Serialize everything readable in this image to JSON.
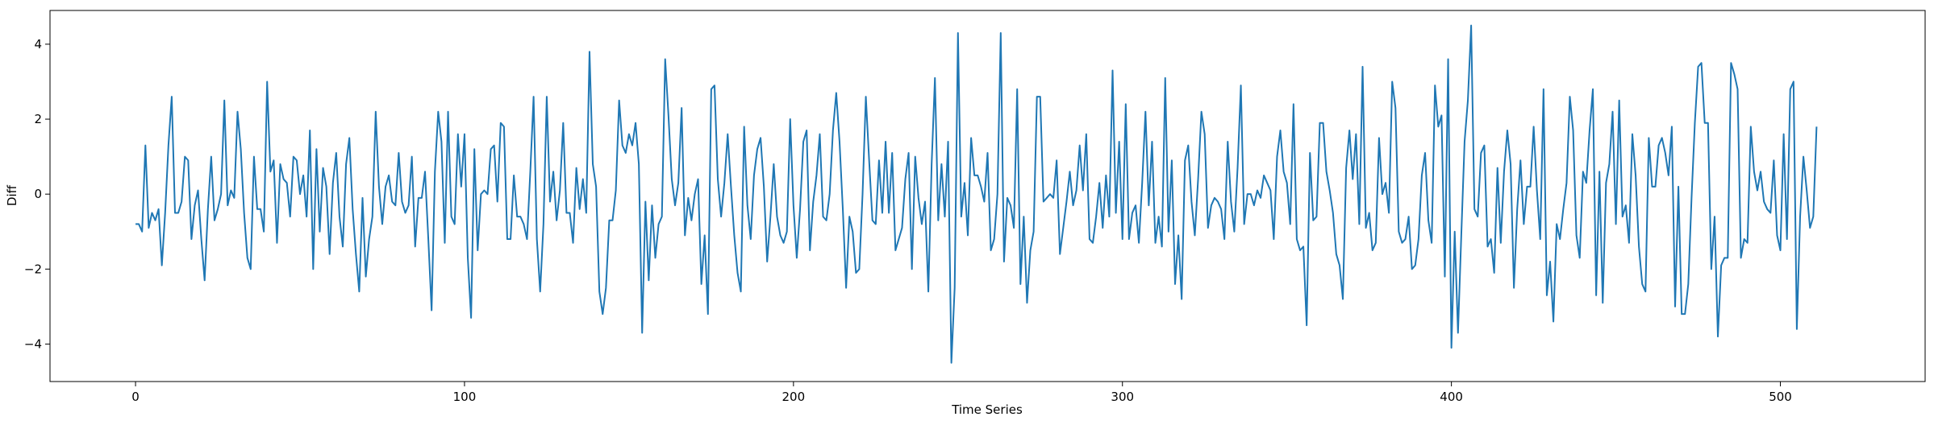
{
  "chart_data": {
    "type": "line",
    "title": "",
    "xlabel": "Time Series",
    "ylabel": "Diff",
    "xlim": [
      -26,
      544
    ],
    "ylim": [
      -5.0,
      4.9
    ],
    "xticks": [
      0,
      100,
      200,
      300,
      400,
      500
    ],
    "xtick_labels": [
      "0",
      "100",
      "200",
      "300",
      "400",
      "500"
    ],
    "yticks": [
      -4,
      -2,
      0,
      2,
      4
    ],
    "ytick_labels": [
      "−4",
      "−2",
      "0",
      "2",
      "4"
    ],
    "grid": false,
    "legend": "none",
    "series": [
      {
        "color": "#1f77b4",
        "x_start": 0,
        "x_step": 1,
        "values": [
          -0.8,
          -0.8,
          -1.0,
          1.3,
          -0.9,
          -0.5,
          -0.7,
          -0.4,
          -1.9,
          -0.5,
          1.3,
          2.6,
          -0.5,
          -0.5,
          -0.2,
          1.0,
          0.9,
          -1.2,
          -0.3,
          0.1,
          -1.2,
          -2.3,
          -0.4,
          1.0,
          -0.7,
          -0.4,
          0.0,
          2.5,
          -0.3,
          0.1,
          -0.1,
          2.2,
          1.2,
          -0.5,
          -1.7,
          -2.0,
          1.0,
          -0.4,
          -0.4,
          -1.0,
          3.0,
          0.6,
          0.9,
          -1.3,
          0.8,
          0.4,
          0.3,
          -0.6,
          1.0,
          0.9,
          0.0,
          0.5,
          -0.6,
          1.7,
          -2.0,
          1.2,
          -1.0,
          0.7,
          0.2,
          -1.6,
          0.3,
          1.1,
          -0.6,
          -1.4,
          0.8,
          1.5,
          -0.4,
          -1.6,
          -2.6,
          -0.1,
          -2.2,
          -1.2,
          -0.6,
          2.2,
          0.2,
          -0.8,
          0.2,
          0.5,
          -0.2,
          -0.3,
          1.1,
          -0.2,
          -0.5,
          -0.3,
          1.0,
          -1.4,
          -0.1,
          -0.1,
          0.6,
          -1.2,
          -3.1,
          0.6,
          2.2,
          1.4,
          -1.3,
          2.2,
          -0.6,
          -0.8,
          1.6,
          0.2,
          1.6,
          -1.7,
          -3.3,
          1.2,
          -1.5,
          0.0,
          0.1,
          0.0,
          1.2,
          1.3,
          -0.2,
          1.9,
          1.8,
          -1.2,
          -1.2,
          0.5,
          -0.6,
          -0.6,
          -0.8,
          -1.2,
          0.6,
          2.6,
          -1.2,
          -2.6,
          -0.8,
          2.6,
          -0.2,
          0.6,
          -0.7,
          0.1,
          1.9,
          -0.5,
          -0.5,
          -1.3,
          0.7,
          -0.4,
          0.4,
          -0.5,
          3.8,
          0.8,
          0.2,
          -2.6,
          -3.2,
          -2.5,
          -0.7,
          -0.7,
          0.1,
          2.5,
          1.3,
          1.1,
          1.6,
          1.3,
          1.9,
          0.8,
          -3.7,
          -0.2,
          -2.3,
          -0.3,
          -1.7,
          -0.8,
          -0.6,
          3.6,
          2.1,
          0.4,
          -0.3,
          0.3,
          2.3,
          -1.1,
          -0.1,
          -0.7,
          0.0,
          0.4,
          -2.4,
          -1.1,
          -3.2,
          2.8,
          2.9,
          0.4,
          -0.6,
          0.3,
          1.6,
          0.2,
          -1.1,
          -2.1,
          -2.6,
          1.8,
          -0.3,
          -1.2,
          0.5,
          1.2,
          1.5,
          0.2,
          -1.8,
          -0.6,
          0.8,
          -0.6,
          -1.1,
          -1.3,
          -1.0,
          2.0,
          -0.3,
          -1.7,
          -0.4,
          1.4,
          1.7,
          -1.5,
          -0.2,
          0.5,
          1.6,
          -0.6,
          -0.7,
          0.0,
          1.7,
          2.7,
          1.4,
          -0.4,
          -2.5,
          -0.6,
          -1.0,
          -2.1,
          -2.0,
          0.0,
          2.6,
          0.9,
          -0.7,
          -0.8,
          0.9,
          -0.5,
          1.4,
          -0.5,
          1.1,
          -1.5,
          -1.2,
          -0.9,
          0.4,
          1.1,
          -2.0,
          1.0,
          -0.1,
          -0.8,
          -0.2,
          -2.6,
          0.8,
          3.1,
          -0.7,
          0.8,
          -0.6,
          1.4,
          -4.5,
          -2.5,
          4.3,
          -0.6,
          0.3,
          -1.1,
          1.5,
          0.5,
          0.5,
          0.2,
          -0.2,
          1.1,
          -1.5,
          -1.2,
          0.0,
          4.3,
          -1.8,
          -0.1,
          -0.3,
          -0.9,
          2.8,
          -2.4,
          -0.6,
          -2.9,
          -1.5,
          -1.0,
          2.6,
          2.6,
          -0.2,
          -0.1,
          0.0,
          -0.1,
          0.9,
          -1.6,
          -0.9,
          -0.2,
          0.6,
          -0.3,
          0.1,
          1.3,
          0.1,
          1.6,
          -1.2,
          -1.3,
          -0.6,
          0.3,
          -0.9,
          0.5,
          -0.6,
          3.3,
          -0.5,
          1.4,
          -1.2,
          2.4,
          -1.2,
          -0.5,
          -0.3,
          -1.3,
          0.3,
          2.2,
          -0.3,
          1.4,
          -1.3,
          -0.6,
          -1.4,
          3.1,
          -1.0,
          0.9,
          -2.4,
          -1.1,
          -2.8,
          0.9,
          1.3,
          -0.2,
          -1.1,
          0.4,
          2.2,
          1.6,
          -0.9,
          -0.3,
          -0.1,
          -0.2,
          -0.4,
          -1.2,
          1.4,
          -0.2,
          -1.0,
          0.7,
          2.9,
          -0.8,
          0.0,
          0.0,
          -0.3,
          0.1,
          -0.1,
          0.5,
          0.3,
          0.1,
          -1.2,
          1.0,
          1.7,
          0.6,
          0.3,
          -0.8,
          2.4,
          -1.2,
          -1.5,
          -1.4,
          -3.5,
          1.1,
          -0.7,
          -0.6,
          1.9,
          1.9,
          0.6,
          0.1,
          -0.5,
          -1.6,
          -1.9,
          -2.8,
          0.7,
          1.7,
          0.4,
          1.6,
          -0.8,
          3.4,
          -0.9,
          -0.5,
          -1.5,
          -1.3,
          1.5,
          0.0,
          0.3,
          -0.5,
          3.0,
          2.3,
          -1.0,
          -1.3,
          -1.2,
          -0.6,
          -2.0,
          -1.9,
          -1.2,
          0.5,
          1.1,
          -0.7,
          -1.3,
          2.9,
          1.8,
          2.1,
          -2.2,
          3.6,
          -4.1,
          -1.0,
          -3.7,
          -1.1,
          1.4,
          2.5,
          4.5,
          -0.4,
          -0.6,
          1.1,
          1.3,
          -1.4,
          -1.2,
          -2.1,
          0.7,
          -1.3,
          0.6,
          1.7,
          0.8,
          -2.5,
          -0.4,
          0.9,
          -0.8,
          0.2,
          0.2,
          1.8,
          0.1,
          -1.2,
          2.8,
          -2.7,
          -1.8,
          -3.4,
          -0.8,
          -1.2,
          -0.4,
          0.3,
          2.6,
          1.7,
          -1.1,
          -1.7,
          0.6,
          0.3,
          1.7,
          2.8,
          -2.7,
          0.6,
          -2.9,
          0.3,
          0.8,
          2.2,
          -0.8,
          2.5,
          -0.6,
          -0.3,
          -1.3,
          1.6,
          0.5,
          -1.4,
          -2.4,
          -2.6,
          1.5,
          0.2,
          0.2,
          1.3,
          1.5,
          1.1,
          0.5,
          1.8,
          -3.0,
          0.2,
          -3.2,
          -3.2,
          -2.4,
          -0.1,
          1.9,
          3.4,
          3.5,
          1.9,
          1.9,
          -2.0,
          -0.6,
          -3.8,
          -1.9,
          -1.7,
          -1.7,
          3.5,
          3.2,
          2.8,
          -1.7,
          -1.2,
          -1.3,
          1.8,
          0.6,
          0.1,
          0.6,
          -0.2,
          -0.4,
          -0.5,
          0.9,
          -1.1,
          -1.5,
          1.6,
          -1.2,
          2.8,
          3.0,
          -3.6,
          -0.6,
          1.0,
          0.1,
          -0.9,
          -0.6,
          1.8
        ]
      }
    ]
  }
}
